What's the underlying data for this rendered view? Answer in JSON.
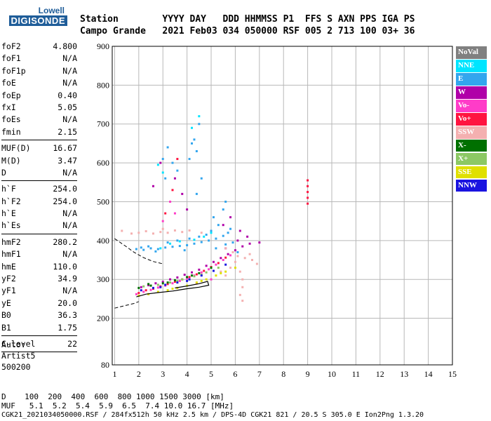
{
  "logo": {
    "top": "Lowell",
    "bottom": "DIGISONDE"
  },
  "header": {
    "line1": "Station        YYYY DAY   DDD HHMMSS P1  FFS S AXN PPS IGA PS",
    "line2": "Campo Grande   2021 Feb03 034 050000 RSF 005 2 713 100 03+ 36"
  },
  "params": [
    {
      "name": "foF2",
      "value": "4.800"
    },
    {
      "name": "foF1",
      "value": "N/A"
    },
    {
      "name": "foF1p",
      "value": "N/A"
    },
    {
      "name": "foE",
      "value": "N/A"
    },
    {
      "name": "foEp",
      "value": "0.40"
    },
    {
      "name": "fxI",
      "value": "5.05"
    },
    {
      "name": "foEs",
      "value": "N/A"
    },
    {
      "name": "fmin",
      "value": "2.15"
    },
    {
      "sep": true
    },
    {
      "name": "MUF(D)",
      "value": "16.67"
    },
    {
      "name": "M(D)",
      "value": "3.47"
    },
    {
      "name": "D",
      "value": "N/A"
    },
    {
      "sep": true
    },
    {
      "name": "h`F",
      "value": "254.0"
    },
    {
      "name": "h`F2",
      "value": "254.0"
    },
    {
      "name": "h`E",
      "value": "N/A"
    },
    {
      "name": "h`Es",
      "value": "N/A"
    },
    {
      "sep": true
    },
    {
      "name": "hmF2",
      "value": "280.2"
    },
    {
      "name": "hmF1",
      "value": "N/A"
    },
    {
      "name": "hmE",
      "value": "110.0"
    },
    {
      "name": "yF2",
      "value": "34.9"
    },
    {
      "name": "yF1",
      "value": "N/A"
    },
    {
      "name": "yE",
      "value": "20.0"
    },
    {
      "name": "B0",
      "value": "36.3"
    },
    {
      "name": "B1",
      "value": "1.75"
    },
    {
      "sep": true
    },
    {
      "name": "C-level",
      "value": "22"
    },
    {
      "sep": true
    }
  ],
  "auto": {
    "line1": "Auto:",
    "line2": "Artist5",
    "line3": "500200"
  },
  "legend": [
    {
      "label": "NoVal",
      "color": "#808080"
    },
    {
      "label": "NNE",
      "color": "#00e5ff"
    },
    {
      "label": "E",
      "color": "#33a6ee"
    },
    {
      "label": "W",
      "color": "#b000a8"
    },
    {
      "label": "Vo-",
      "color": "#ff3cc8"
    },
    {
      "label": "Vo+",
      "color": "#ff1440"
    },
    {
      "label": "SSW",
      "color": "#f4b0b0"
    },
    {
      "label": "X-",
      "color": "#007000"
    },
    {
      "label": "X+",
      "color": "#8cc864"
    },
    {
      "label": "SSE",
      "color": "#e0e000"
    },
    {
      "label": "NNW",
      "color": "#1a14e0"
    }
  ],
  "footer": {
    "line1": "D    100  200  400  600  800 1000 1500 3000 [km]",
    "line2": "MUF   5.1  5.2  5.4  5.9  6.5  7.4 10.0 16.7 [MHz]",
    "line3": "CGK21_2021034050000.RSF / 284fx512h 50 kHz 2.5 km / DPS-4D CGK21 821 / 20.5 S 305.0 E Ion2Png 1.3.20"
  },
  "chart_data": {
    "type": "scatter",
    "title": "",
    "xlabel": "",
    "ylabel": "",
    "xlim": [
      0.9,
      15
    ],
    "ylim": [
      80,
      900
    ],
    "x_ticks": [
      1,
      2,
      3,
      4,
      5,
      6,
      7,
      8,
      9,
      10,
      11,
      12,
      13,
      14,
      15
    ],
    "y_ticks": [
      80,
      200,
      300,
      400,
      500,
      600,
      700,
      800,
      900
    ],
    "grid": true,
    "legend_position": "right",
    "profile_solid": [
      [
        1.9,
        255
      ],
      [
        2.3,
        262
      ],
      [
        2.8,
        266
      ],
      [
        3.4,
        270
      ],
      [
        4.0,
        276
      ],
      [
        4.5,
        280
      ],
      [
        4.9,
        285
      ],
      [
        4.85,
        295
      ],
      [
        4.5,
        289
      ],
      [
        4.0,
        283
      ],
      [
        3.5,
        278
      ]
    ],
    "profile_dashed_top": [
      [
        1.0,
        405
      ],
      [
        1.4,
        388
      ],
      [
        1.8,
        370
      ],
      [
        2.2,
        356
      ],
      [
        2.6,
        346
      ],
      [
        3.0,
        340
      ]
    ],
    "profile_dashed_bottom": [
      [
        1.0,
        226
      ],
      [
        1.4,
        232
      ],
      [
        1.8,
        238
      ],
      [
        2.0,
        243
      ]
    ],
    "series": [
      {
        "name": "E",
        "color": "#33a6ee",
        "points": [
          [
            1.9,
            378
          ],
          [
            2.2,
            376
          ],
          [
            2.5,
            380
          ],
          [
            2.8,
            378
          ],
          [
            3.1,
            382
          ],
          [
            3.4,
            384
          ],
          [
            3.7,
            386
          ],
          [
            4.0,
            388
          ],
          [
            4.3,
            392
          ],
          [
            4.6,
            396
          ],
          [
            4.9,
            400
          ],
          [
            5.2,
            405
          ],
          [
            5.5,
            412
          ],
          [
            5.7,
            420
          ],
          [
            5.3,
            440
          ],
          [
            5.1,
            460
          ],
          [
            5.5,
            480
          ],
          [
            5.6,
            500
          ],
          [
            3.2,
            395
          ],
          [
            3.6,
            400
          ],
          [
            4.1,
            405
          ],
          [
            4.5,
            410
          ],
          [
            4.8,
            415
          ],
          [
            5.0,
            425
          ],
          [
            3.1,
            560
          ],
          [
            3.0,
            610
          ],
          [
            3.2,
            640
          ],
          [
            3.4,
            600
          ],
          [
            3.6,
            580
          ],
          [
            4.2,
            650
          ],
          [
            4.4,
            630
          ],
          [
            4.3,
            660
          ],
          [
            4.1,
            610
          ],
          [
            4.5,
            700
          ],
          [
            4.6,
            560
          ],
          [
            4.4,
            520
          ],
          [
            5.2,
            380
          ],
          [
            5.6,
            390
          ],
          [
            5.9,
            395
          ],
          [
            6.1,
            370
          ],
          [
            5.8,
            430
          ],
          [
            3.9,
            375
          ],
          [
            2.1,
            382
          ],
          [
            2.4,
            385
          ],
          [
            2.7,
            372
          ]
        ]
      },
      {
        "name": "W",
        "color": "#b000a8",
        "points": [
          [
            2.1,
            280
          ],
          [
            2.4,
            285
          ],
          [
            2.7,
            290
          ],
          [
            3.0,
            294
          ],
          [
            3.3,
            300
          ],
          [
            3.6,
            305
          ],
          [
            3.9,
            312
          ],
          [
            4.2,
            318
          ],
          [
            4.5,
            325
          ],
          [
            4.8,
            335
          ],
          [
            5.1,
            345
          ],
          [
            5.4,
            355
          ],
          [
            5.7,
            365
          ],
          [
            6.0,
            375
          ],
          [
            6.3,
            385
          ],
          [
            6.6,
            392
          ],
          [
            7.0,
            395
          ],
          [
            5.5,
            440
          ],
          [
            5.8,
            460
          ],
          [
            6.2,
            425
          ],
          [
            6.5,
            410
          ],
          [
            2.6,
            540
          ],
          [
            2.9,
            600
          ],
          [
            3.5,
            560
          ],
          [
            3.8,
            520
          ],
          [
            4.0,
            480
          ],
          [
            5.6,
            380
          ],
          [
            6.1,
            400
          ]
        ]
      },
      {
        "name": "Vo-",
        "color": "#ff3cc8",
        "points": [
          [
            1.9,
            262
          ],
          [
            2.2,
            268
          ],
          [
            2.5,
            273
          ],
          [
            2.8,
            279
          ],
          [
            3.1,
            284
          ],
          [
            3.4,
            290
          ],
          [
            3.7,
            296
          ],
          [
            4.0,
            302
          ],
          [
            4.3,
            310
          ],
          [
            4.6,
            318
          ],
          [
            4.9,
            326
          ],
          [
            5.2,
            338
          ],
          [
            5.5,
            350
          ],
          [
            5.8,
            362
          ],
          [
            3.0,
            450
          ],
          [
            3.3,
            500
          ],
          [
            3.5,
            470
          ],
          [
            5.0,
            300
          ],
          [
            4.4,
            290
          ]
        ]
      },
      {
        "name": "Vo+",
        "color": "#ff1440",
        "points": [
          [
            2.0,
            265
          ],
          [
            2.3,
            272
          ],
          [
            2.6,
            276
          ],
          [
            2.9,
            282
          ],
          [
            3.2,
            288
          ],
          [
            3.5,
            294
          ],
          [
            3.8,
            300
          ],
          [
            4.1,
            306
          ],
          [
            4.4,
            313
          ],
          [
            4.7,
            322
          ],
          [
            5.0,
            332
          ],
          [
            5.3,
            342
          ],
          [
            5.6,
            356
          ],
          [
            9.0,
            495
          ],
          [
            9.0,
            510
          ],
          [
            9.0,
            525
          ],
          [
            9.0,
            540
          ],
          [
            9.0,
            555
          ],
          [
            3.4,
            530
          ],
          [
            3.1,
            470
          ],
          [
            3.6,
            610
          ]
        ]
      },
      {
        "name": "SSW",
        "color": "#f4b0b0",
        "points": [
          [
            1.3,
            425
          ],
          [
            1.7,
            418
          ],
          [
            2.0,
            420
          ],
          [
            2.3,
            424
          ],
          [
            2.6,
            418
          ],
          [
            2.9,
            422
          ],
          [
            3.2,
            420
          ],
          [
            3.5,
            426
          ],
          [
            3.8,
            422
          ],
          [
            4.1,
            426
          ],
          [
            5.6,
            380
          ],
          [
            5.9,
            370
          ],
          [
            6.1,
            360
          ],
          [
            6.4,
            355
          ],
          [
            6.7,
            350
          ],
          [
            6.9,
            340
          ],
          [
            6.2,
            320
          ],
          [
            6.3,
            300
          ],
          [
            6.3,
            280
          ],
          [
            6.2,
            260
          ],
          [
            6.3,
            245
          ],
          [
            5.8,
            330
          ],
          [
            6.0,
            345
          ],
          [
            6.6,
            365
          ],
          [
            5.4,
            320
          ],
          [
            5.6,
            310
          ],
          [
            3.0,
            430
          ],
          [
            4.6,
            420
          ]
        ]
      },
      {
        "name": "X-",
        "color": "#007000",
        "points": [
          [
            2.0,
            278
          ],
          [
            2.5,
            284
          ],
          [
            3.0,
            290
          ],
          [
            3.5,
            298
          ],
          [
            4.0,
            306
          ],
          [
            4.5,
            316
          ],
          [
            5.0,
            330
          ],
          [
            3.2,
            292
          ],
          [
            4.2,
            310
          ],
          [
            2.4,
            288
          ]
        ]
      },
      {
        "name": "X+",
        "color": "#8cc864",
        "points": [
          [
            2.2,
            282
          ],
          [
            2.8,
            286
          ],
          [
            3.3,
            292
          ],
          [
            3.8,
            300
          ],
          [
            4.3,
            308
          ],
          [
            4.8,
            318
          ],
          [
            5.3,
            330
          ],
          [
            3.6,
            296
          ],
          [
            4.6,
            312
          ]
        ]
      },
      {
        "name": "SSE",
        "color": "#e0e000",
        "points": [
          [
            2.0,
            258
          ],
          [
            2.4,
            262
          ],
          [
            2.8,
            268
          ],
          [
            3.2,
            272
          ],
          [
            3.6,
            278
          ],
          [
            4.0,
            284
          ],
          [
            4.4,
            292
          ],
          [
            4.8,
            300
          ],
          [
            5.2,
            310
          ],
          [
            5.6,
            320
          ],
          [
            6.0,
            330
          ],
          [
            3.4,
            276
          ],
          [
            4.6,
            296
          ],
          [
            5.4,
            316
          ]
        ]
      },
      {
        "name": "NNE",
        "color": "#00e5ff",
        "points": [
          [
            2.9,
            380
          ],
          [
            3.3,
            392
          ],
          [
            3.7,
            398
          ],
          [
            4.3,
            402
          ],
          [
            4.7,
            410
          ],
          [
            4.5,
            720
          ],
          [
            4.2,
            690
          ],
          [
            3.0,
            575
          ],
          [
            2.8,
            595
          ],
          [
            5.0,
            420
          ]
        ]
      },
      {
        "name": "NNW",
        "color": "#1a14e0",
        "points": [
          [
            2.1,
            272
          ],
          [
            2.6,
            278
          ],
          [
            3.1,
            286
          ],
          [
            3.6,
            292
          ],
          [
            4.1,
            300
          ],
          [
            4.6,
            310
          ],
          [
            5.1,
            322
          ],
          [
            5.6,
            338
          ],
          [
            2.9,
            280
          ],
          [
            4.0,
            296
          ]
        ]
      }
    ]
  }
}
